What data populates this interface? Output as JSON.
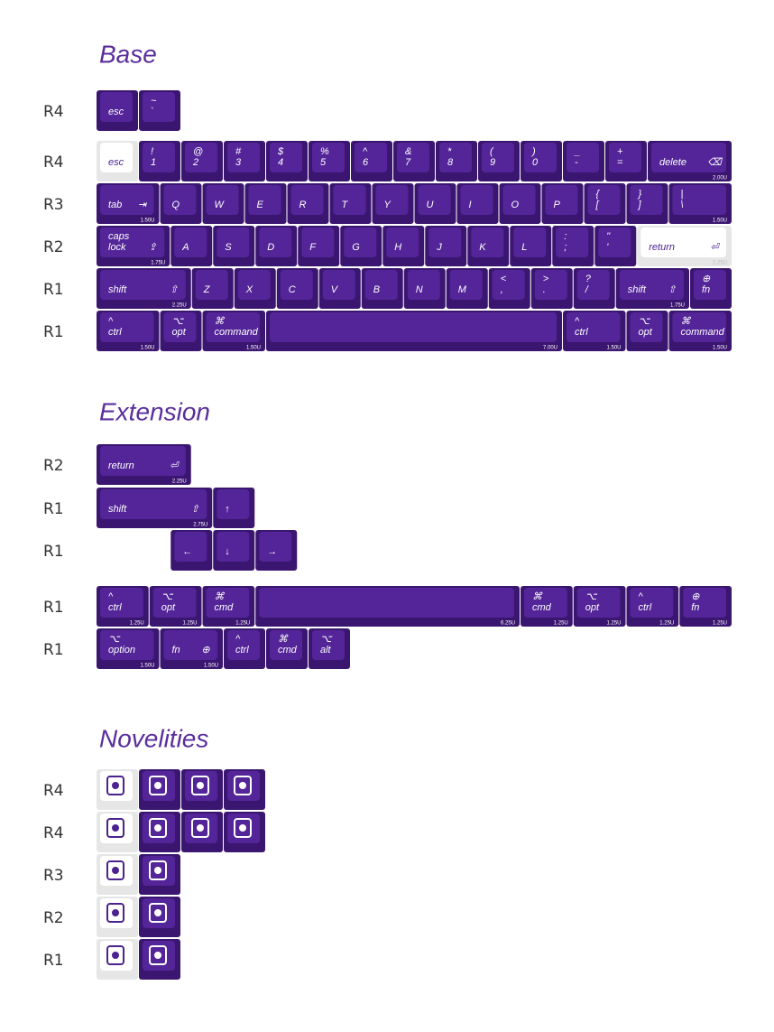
{
  "sections": [
    {
      "title": "Base",
      "rows": [
        {
          "label": "R4",
          "keys": [
            {
              "legends": [
                "esc"
              ]
            },
            {
              "legends": [
                "~",
                "`"
              ]
            }
          ]
        },
        {
          "label": "R4",
          "keys": [
            {
              "legends": [
                "esc"
              ]
            },
            {
              "legends": [
                "!",
                "1"
              ]
            },
            {
              "legends": [
                "@",
                "2"
              ]
            },
            {
              "legends": [
                "#",
                "3"
              ]
            },
            {
              "legends": [
                "$",
                "4"
              ]
            },
            {
              "legends": [
                "%",
                "5"
              ]
            },
            {
              "legends": [
                "^",
                "6"
              ]
            },
            {
              "legends": [
                "&",
                "7"
              ]
            },
            {
              "legends": [
                "*",
                "8"
              ]
            },
            {
              "legends": [
                "(",
                "9"
              ]
            },
            {
              "legends": [
                ")",
                "0"
              ]
            },
            {
              "legends": [
                "_",
                "-"
              ]
            },
            {
              "legends": [
                "+",
                "="
              ]
            },
            {
              "legends": [
                "delete"
              ],
              "icon": "⌫",
              "size": "2.00U"
            }
          ]
        },
        {
          "label": "R3",
          "keys": [
            {
              "legends": [
                "tab"
              ],
              "icon": "⇥",
              "size": "1.50U"
            },
            {
              "legends": [
                "Q"
              ]
            },
            {
              "legends": [
                "W"
              ]
            },
            {
              "legends": [
                "E"
              ]
            },
            {
              "legends": [
                "R"
              ]
            },
            {
              "legends": [
                "T"
              ]
            },
            {
              "legends": [
                "Y"
              ]
            },
            {
              "legends": [
                "U"
              ]
            },
            {
              "legends": [
                "I"
              ]
            },
            {
              "legends": [
                "O"
              ]
            },
            {
              "legends": [
                "P"
              ]
            },
            {
              "legends": [
                "{",
                "["
              ]
            },
            {
              "legends": [
                "}",
                "]"
              ]
            },
            {
              "legends": [
                "|",
                "\\"
              ],
              "size": "1.50U"
            }
          ]
        },
        {
          "label": "R2",
          "keys": [
            {
              "legends": [
                "caps",
                "lock"
              ],
              "icon": "⇪",
              "size": "1.75U"
            },
            {
              "legends": [
                "A"
              ]
            },
            {
              "legends": [
                "S"
              ]
            },
            {
              "legends": [
                "D"
              ]
            },
            {
              "legends": [
                "F"
              ]
            },
            {
              "legends": [
                "G"
              ]
            },
            {
              "legends": [
                "H"
              ]
            },
            {
              "legends": [
                "J"
              ]
            },
            {
              "legends": [
                "K"
              ]
            },
            {
              "legends": [
                "L"
              ]
            },
            {
              "legends": [
                ":",
                ";"
              ]
            },
            {
              "legends": [
                "\"",
                "'"
              ]
            },
            {
              "legends": [
                "return"
              ],
              "icon": "⏎",
              "size": "2.25U"
            }
          ]
        },
        {
          "label": "R1",
          "keys": [
            {
              "legends": [
                "shift"
              ],
              "icon": "⇧",
              "size": "2.25U"
            },
            {
              "legends": [
                "Z"
              ]
            },
            {
              "legends": [
                "X"
              ]
            },
            {
              "legends": [
                "C"
              ]
            },
            {
              "legends": [
                "V"
              ]
            },
            {
              "legends": [
                "B"
              ]
            },
            {
              "legends": [
                "N"
              ]
            },
            {
              "legends": [
                "M"
              ]
            },
            {
              "legends": [
                "<",
                ","
              ]
            },
            {
              "legends": [
                ">",
                "."
              ]
            },
            {
              "legends": [
                "?",
                "/"
              ]
            },
            {
              "legends": [
                "shift"
              ],
              "icon": "⇧",
              "size": "1.75U"
            },
            {
              "legends": [
                "⊕",
                "fn"
              ]
            }
          ]
        },
        {
          "label": "R1",
          "keys": [
            {
              "legends": [
                "^",
                "ctrl"
              ],
              "size": "1.50U"
            },
            {
              "legends": [
                "⌥",
                "opt"
              ]
            },
            {
              "legends": [
                "⌘",
                "command"
              ],
              "size": "1.50U"
            },
            {
              "legends": [],
              "size": "7.00U"
            },
            {
              "legends": [
                "^",
                "ctrl"
              ],
              "size": "1.50U"
            },
            {
              "legends": [
                "⌥",
                "opt"
              ]
            },
            {
              "legends": [
                "⌘",
                "command"
              ],
              "size": "1.50U"
            }
          ]
        }
      ]
    },
    {
      "title": "Extension",
      "rows": [
        {
          "label": "R2",
          "keys": [
            {
              "legends": [
                "return"
              ],
              "icon": "⏎",
              "size": "2.25U"
            }
          ]
        },
        {
          "label": "R1",
          "keys": [
            {
              "legends": [
                "shift"
              ],
              "icon": "⇧",
              "size": "2.75U"
            },
            {
              "legends": [
                "↑"
              ]
            }
          ]
        },
        {
          "label": "R1",
          "keys": [
            {
              "legends": [
                "←"
              ]
            },
            {
              "legends": [
                "↓"
              ]
            },
            {
              "legends": [
                "→"
              ]
            }
          ]
        },
        {
          "label": "R1",
          "keys": [
            {
              "legends": [
                "^",
                "ctrl"
              ],
              "size": "1.25U"
            },
            {
              "legends": [
                "⌥",
                "opt"
              ],
              "size": "1.25U"
            },
            {
              "legends": [
                "⌘",
                "cmd"
              ],
              "size": "1.25U"
            },
            {
              "legends": [],
              "size": "6.25U"
            },
            {
              "legends": [
                "⌘",
                "cmd"
              ],
              "size": "1.25U"
            },
            {
              "legends": [
                "⌥",
                "opt"
              ],
              "size": "1.25U"
            },
            {
              "legends": [
                "^",
                "ctrl"
              ],
              "size": "1.25U"
            },
            {
              "legends": [
                "⊕",
                "fn"
              ],
              "size": "1.25U"
            }
          ]
        },
        {
          "label": "R1",
          "keys": [
            {
              "legends": [
                "⌥",
                "option"
              ],
              "size": "1.50U"
            },
            {
              "legends": [
                "fn"
              ],
              "icon": "⊕",
              "size": "1.50U"
            },
            {
              "legends": [
                "^",
                "ctrl"
              ]
            },
            {
              "legends": [
                "⌘",
                "cmd"
              ]
            },
            {
              "legends": [
                "⌥",
                "alt"
              ]
            }
          ]
        }
      ]
    },
    {
      "title": "Novelities",
      "rows": [
        {
          "label": "R4"
        },
        {
          "label": "R4"
        },
        {
          "label": "R3"
        },
        {
          "label": "R2"
        },
        {
          "label": "R1"
        }
      ]
    }
  ]
}
